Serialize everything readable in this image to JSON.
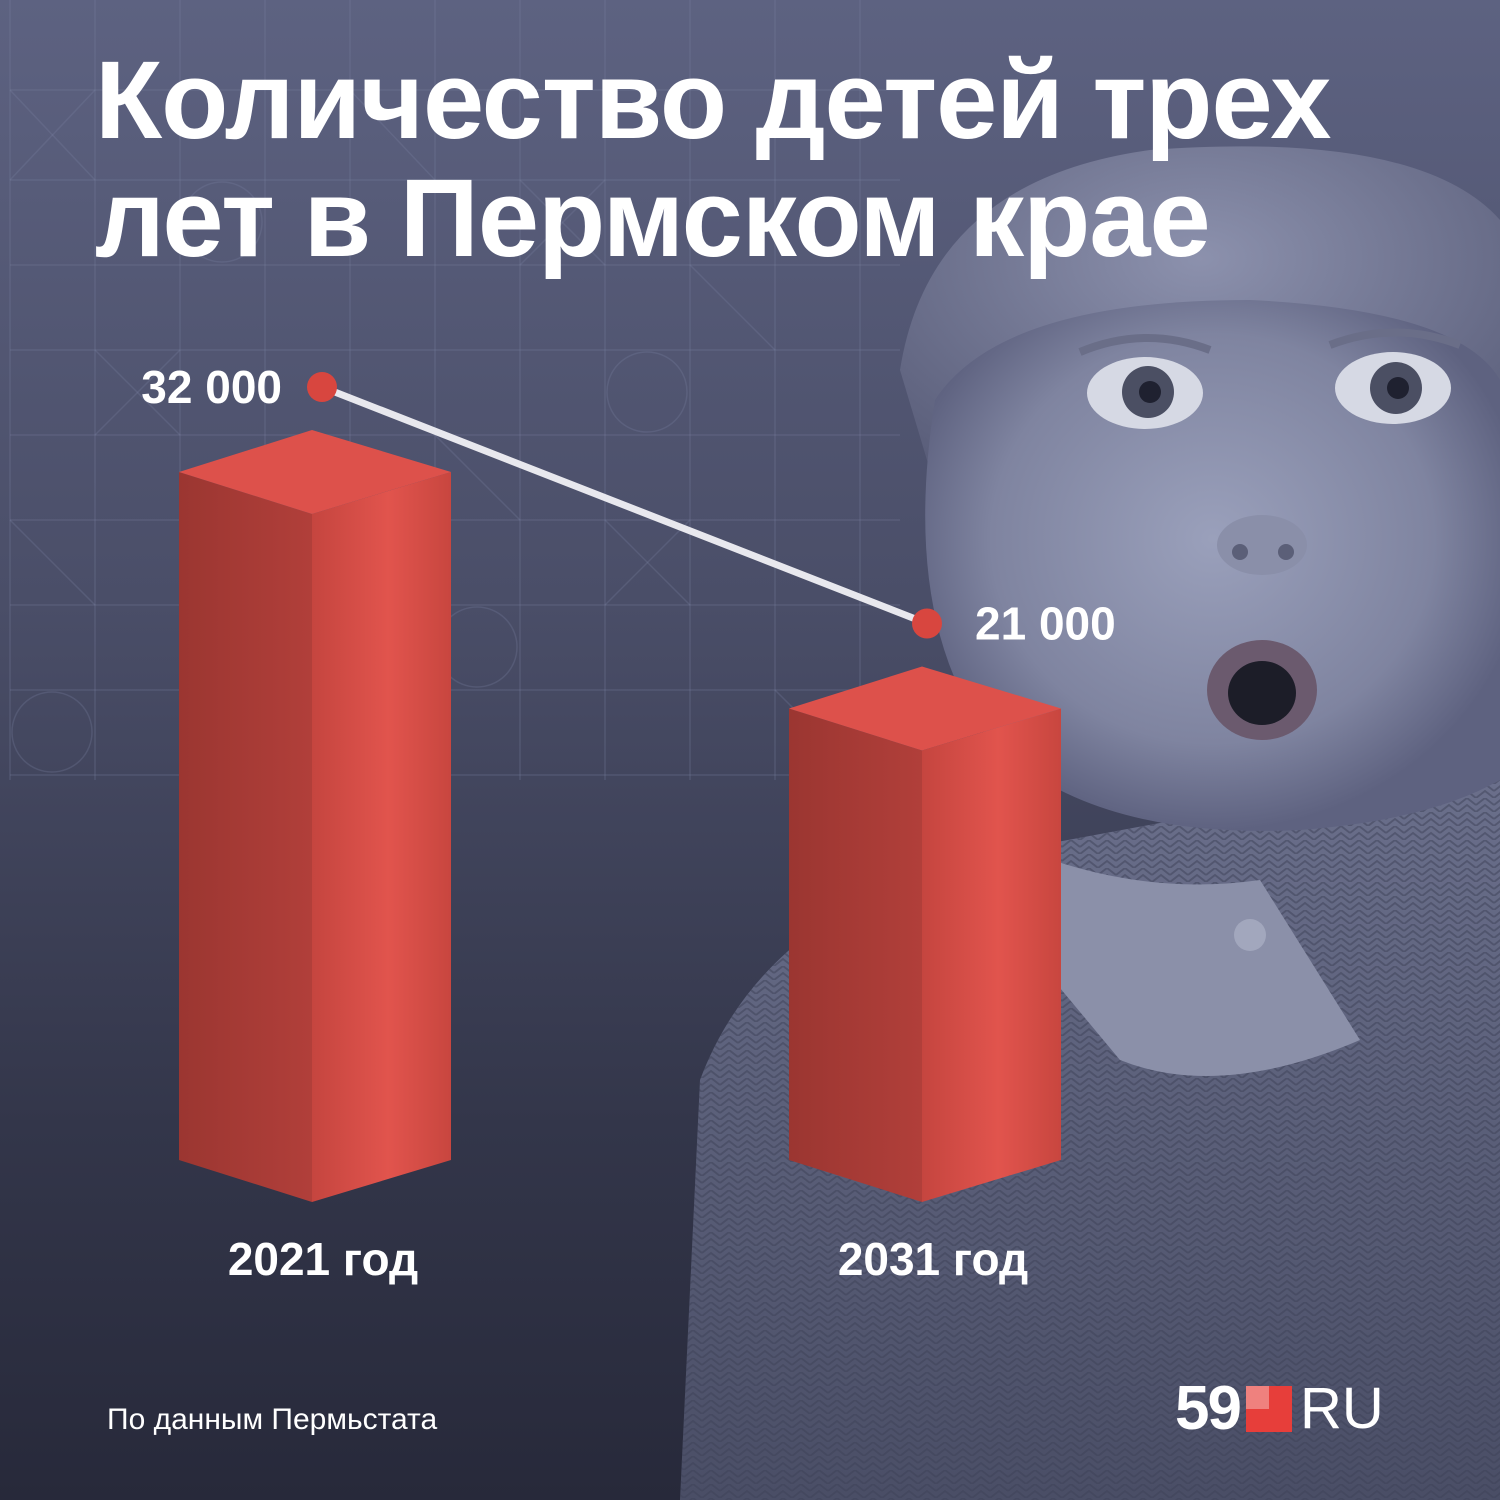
{
  "title_lines": [
    "Количество детей трех",
    "лет в Пермском крае"
  ],
  "source": "По данным Пермьстата",
  "logo": {
    "number": "59",
    "suffix": "RU",
    "accent_color": "#e73e3a"
  },
  "colors": {
    "bar_front": "#b5403b",
    "bar_side": "#d24b45",
    "bar_top": "#dd514b",
    "marker": "#d8463f",
    "connector": "#e8e8ee"
  },
  "chart_data": {
    "type": "bar",
    "style": "3d-column",
    "categories": [
      "2021 год",
      "2031 год"
    ],
    "values": [
      32000,
      21000
    ],
    "value_labels": [
      "32 000",
      "21 000"
    ],
    "connector_line": true,
    "ylim": [
      0,
      32000
    ],
    "grid": false,
    "legend": "none"
  }
}
